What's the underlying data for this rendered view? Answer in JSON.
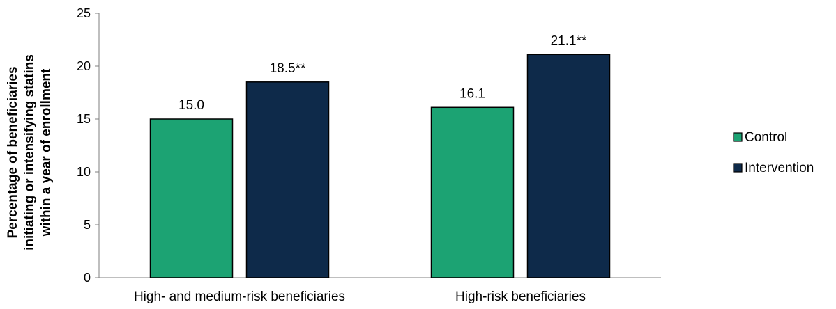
{
  "chart_data": {
    "type": "bar",
    "categories": [
      "High- and medium-risk beneficiaries",
      "High-risk beneficiaries"
    ],
    "series": [
      {
        "name": "Control",
        "values": [
          15.0,
          16.1
        ],
        "labels": [
          "15.0",
          "16.1"
        ],
        "color": "#1ca373"
      },
      {
        "name": "Intervention",
        "values": [
          18.5,
          21.1
        ],
        "labels": [
          "18.5**",
          "21.1**"
        ],
        "color": "#0e2a4a"
      }
    ],
    "ylabel_lines": [
      "Percentage of beneficiaries",
      "initiating or intensifying statins",
      "within a year of enrollment"
    ],
    "ylim": [
      0,
      25
    ],
    "yticks": [
      0,
      5,
      10,
      15,
      20,
      25
    ],
    "grid": false,
    "legend_position": "right"
  }
}
